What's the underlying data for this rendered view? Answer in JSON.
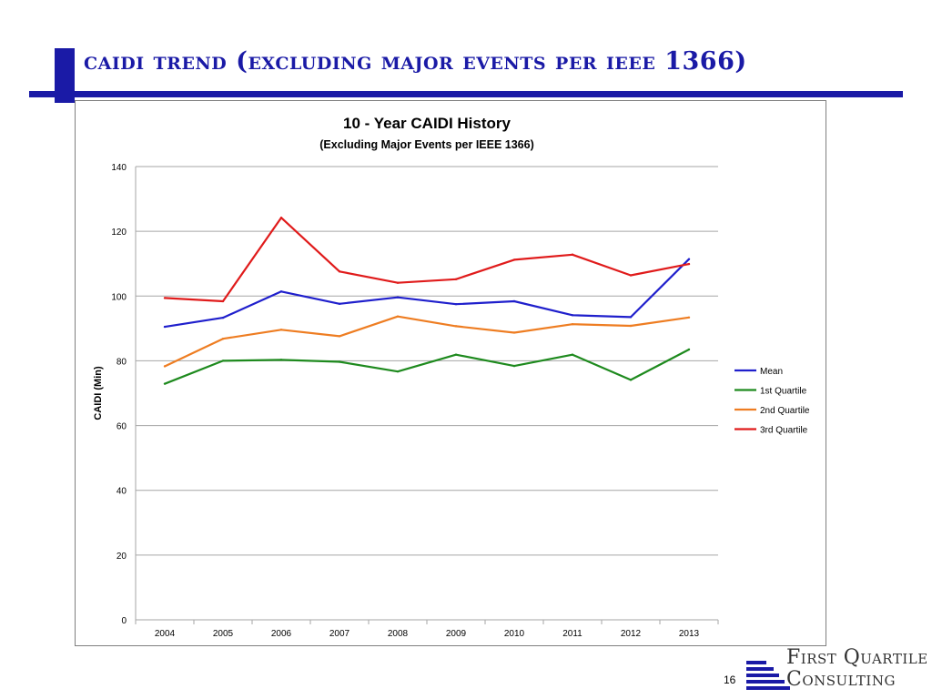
{
  "slide": {
    "title": "CAIDI Trend (Excluding Major Events per IEEE 1366)",
    "page_number": "16",
    "logo": {
      "line1": "First Quartile",
      "line2": "Consulting"
    },
    "accent_color": "#1a1aa6"
  },
  "chart_data": {
    "type": "line",
    "title": "10 - Year CAIDI History",
    "subtitle": "(Excluding  Major Events per IEEE 1366)",
    "xlabel": "",
    "ylabel": "CAIDI (Min)",
    "ylim": [
      0,
      140
    ],
    "yticks": [
      0,
      20,
      40,
      60,
      80,
      100,
      120,
      140
    ],
    "grid": true,
    "legend_position": "right",
    "categories": [
      "2004",
      "2005",
      "2006",
      "2007",
      "2008",
      "2009",
      "2010",
      "2011",
      "2012",
      "2013"
    ],
    "series": [
      {
        "name": "Mean",
        "color": "#1f1fcc",
        "values": [
          90.5,
          93.3,
          101.4,
          97.6,
          99.6,
          97.5,
          98.4,
          94.1,
          93.5,
          111.4
        ]
      },
      {
        "name": "1st Quartile",
        "color": "#1e8a1e",
        "values": [
          72.9,
          80.0,
          80.3,
          79.7,
          76.7,
          81.9,
          78.4,
          81.9,
          74.1,
          83.5
        ]
      },
      {
        "name": "2nd Quartile",
        "color": "#ee7d22",
        "values": [
          78.3,
          86.8,
          89.6,
          87.6,
          93.7,
          90.7,
          88.7,
          91.3,
          90.8,
          93.4
        ]
      },
      {
        "name": "3rd Quartile",
        "color": "#e01b1b",
        "values": [
          99.4,
          98.4,
          124.2,
          107.6,
          104.1,
          105.2,
          111.2,
          112.8,
          106.4,
          109.9
        ]
      }
    ]
  }
}
